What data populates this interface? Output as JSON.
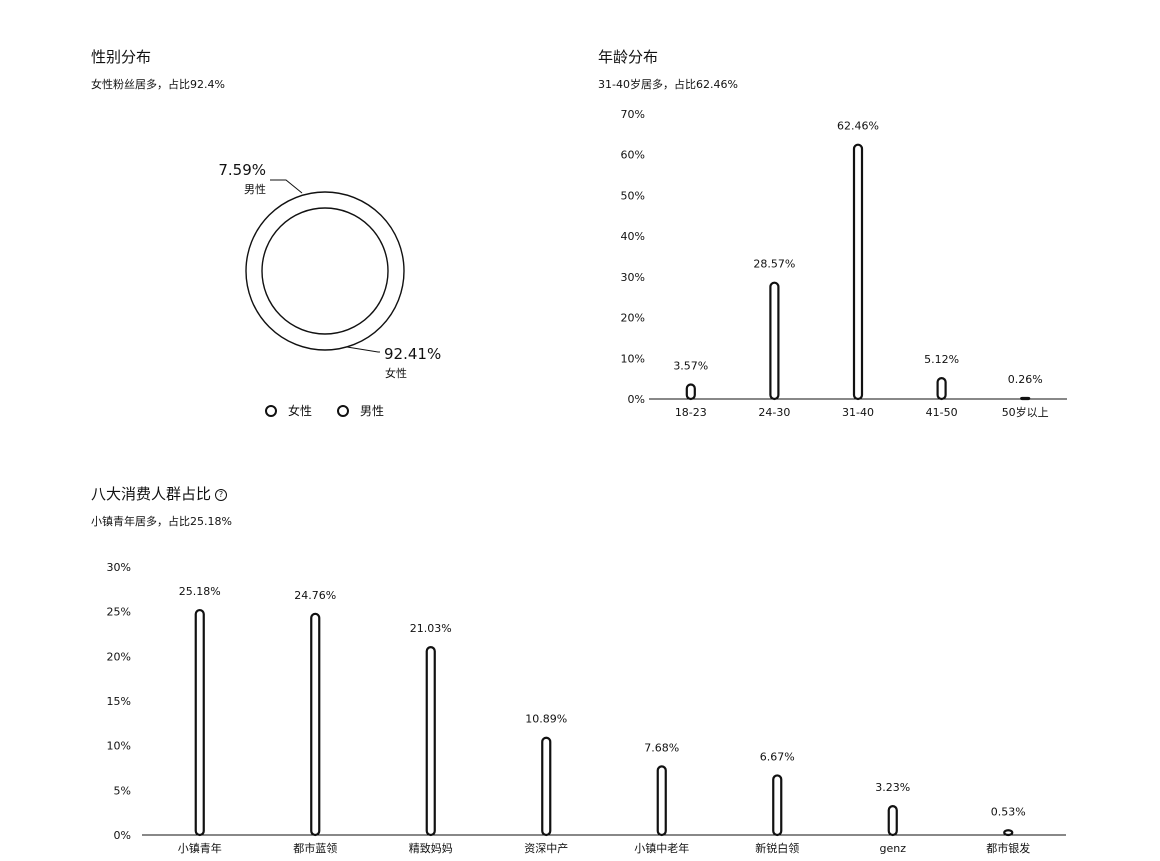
{
  "gender": {
    "title": "性别分布",
    "subtitle": "女性粉丝居多，占比92.4%",
    "legend": [
      {
        "label": "女性",
        "icon": "ring-marker-icon"
      },
      {
        "label": "男性",
        "icon": "ring-marker-icon"
      }
    ]
  },
  "age": {
    "title": "年龄分布",
    "subtitle": "31-40岁居多，占比62.46%"
  },
  "consumer": {
    "title": "八大消费人群占比",
    "subtitle": "小镇青年居多，占比25.18%",
    "help_icon": "question-circle-icon",
    "help_glyph": "?"
  },
  "chart_data": [
    {
      "type": "pie",
      "title": "性别分布",
      "labels": [
        "女性",
        "男性"
      ],
      "values": [
        92.41,
        7.59
      ],
      "value_labels": [
        "92.41%",
        "7.59%"
      ],
      "colors": [
        "#ffffff",
        "#ffffff"
      ]
    },
    {
      "type": "bar",
      "title": "年龄分布",
      "categories": [
        "18-23",
        "24-30",
        "31-40",
        "41-50",
        "50岁以上"
      ],
      "values": [
        3.57,
        28.57,
        62.46,
        5.12,
        0.26
      ],
      "value_labels": [
        "3.57%",
        "28.57%",
        "62.46%",
        "5.12%",
        "0.26%"
      ],
      "ylim": [
        0,
        70
      ],
      "yticks": [
        "0%",
        "10%",
        "20%",
        "30%",
        "40%",
        "50%",
        "60%",
        "70%"
      ],
      "grid": false
    },
    {
      "type": "bar",
      "title": "八大消费人群占比",
      "categories": [
        "小镇青年",
        "都市蓝领",
        "精致妈妈",
        "资深中产",
        "小镇中老年",
        "新锐白领",
        "genz",
        "都市银发"
      ],
      "values": [
        25.18,
        24.76,
        21.03,
        10.89,
        7.68,
        6.67,
        3.23,
        0.53
      ],
      "value_labels": [
        "25.18%",
        "24.76%",
        "21.03%",
        "10.89%",
        "7.68%",
        "6.67%",
        "3.23%",
        "0.53%"
      ],
      "ylim": [
        0,
        30
      ],
      "yticks": [
        "0%",
        "5%",
        "10%",
        "15%",
        "20%",
        "25%",
        "30%"
      ],
      "grid": false
    }
  ]
}
